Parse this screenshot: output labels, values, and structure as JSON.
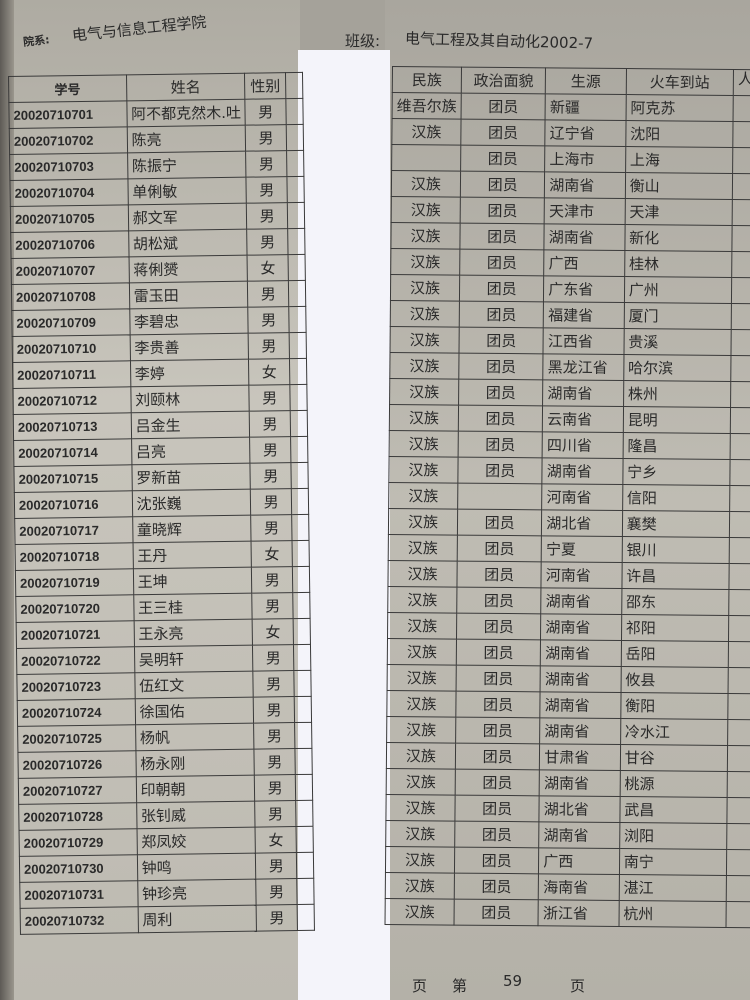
{
  "header": {
    "dept_label": "院系:",
    "dept": "电气与信息工程学院",
    "class_label": "班级:",
    "class": "电气工程及其自动化2002-7",
    "edge_char": "人"
  },
  "left_columns": [
    "学号",
    "姓名",
    "性别"
  ],
  "right_columns": [
    "民族",
    "政治面貌",
    "生源",
    "火车到站"
  ],
  "students": [
    {
      "id": "20020710701",
      "name": "阿不都克然木.吐",
      "gender": "男"
    },
    {
      "id": "20020710702",
      "name": "陈亮",
      "gender": "男"
    },
    {
      "id": "20020710703",
      "name": "陈振宁",
      "gender": "男"
    },
    {
      "id": "20020710704",
      "name": "单俐敏",
      "gender": "男"
    },
    {
      "id": "20020710705",
      "name": "郝文军",
      "gender": "男"
    },
    {
      "id": "20020710706",
      "name": "胡松斌",
      "gender": "男"
    },
    {
      "id": "20020710707",
      "name": "蒋俐赟",
      "gender": "女"
    },
    {
      "id": "20020710708",
      "name": "雷玉田",
      "gender": "男"
    },
    {
      "id": "20020710709",
      "name": "李碧忠",
      "gender": "男"
    },
    {
      "id": "20020710710",
      "name": "李贵善",
      "gender": "男"
    },
    {
      "id": "20020710711",
      "name": "李婷",
      "gender": "女"
    },
    {
      "id": "20020710712",
      "name": "刘颐林",
      "gender": "男"
    },
    {
      "id": "20020710713",
      "name": "吕金生",
      "gender": "男"
    },
    {
      "id": "20020710714",
      "name": "吕亮",
      "gender": "男"
    },
    {
      "id": "20020710715",
      "name": "罗新苗",
      "gender": "男"
    },
    {
      "id": "20020710716",
      "name": "沈张巍",
      "gender": "男"
    },
    {
      "id": "20020710717",
      "name": "童晓辉",
      "gender": "男"
    },
    {
      "id": "20020710718",
      "name": "王丹",
      "gender": "女"
    },
    {
      "id": "20020710719",
      "name": "王坤",
      "gender": "男"
    },
    {
      "id": "20020710720",
      "name": "王三桂",
      "gender": "男"
    },
    {
      "id": "20020710721",
      "name": "王永亮",
      "gender": "女"
    },
    {
      "id": "20020710722",
      "name": "吴明轩",
      "gender": "男"
    },
    {
      "id": "20020710723",
      "name": "伍红文",
      "gender": "男"
    },
    {
      "id": "20020710724",
      "name": "徐国佑",
      "gender": "男"
    },
    {
      "id": "20020710725",
      "name": "杨帆",
      "gender": "男"
    },
    {
      "id": "20020710726",
      "name": "杨永刚",
      "gender": "男"
    },
    {
      "id": "20020710727",
      "name": "印朝朝",
      "gender": "男"
    },
    {
      "id": "20020710728",
      "name": "张钊威",
      "gender": "男"
    },
    {
      "id": "20020710729",
      "name": "郑凤姣",
      "gender": "女"
    },
    {
      "id": "20020710730",
      "name": "钟鸣",
      "gender": "男"
    },
    {
      "id": "20020710731",
      "name": "钟珍亮",
      "gender": "男"
    },
    {
      "id": "20020710732",
      "name": "周利",
      "gender": "男"
    }
  ],
  "details": [
    {
      "nation": "维吾尔族",
      "politics": "团员",
      "origin": "新疆",
      "station": "阿克苏"
    },
    {
      "nation": "汉族",
      "politics": "团员",
      "origin": "辽宁省",
      "station": "沈阳"
    },
    {
      "nation": "",
      "politics": "团员",
      "origin": "上海市",
      "station": "上海"
    },
    {
      "nation": "汉族",
      "politics": "团员",
      "origin": "湖南省",
      "station": "衡山"
    },
    {
      "nation": "汉族",
      "politics": "团员",
      "origin": "天津市",
      "station": "天津"
    },
    {
      "nation": "汉族",
      "politics": "团员",
      "origin": "湖南省",
      "station": "新化"
    },
    {
      "nation": "汉族",
      "politics": "团员",
      "origin": "广西",
      "station": "桂林"
    },
    {
      "nation": "汉族",
      "politics": "团员",
      "origin": "广东省",
      "station": "广州"
    },
    {
      "nation": "汉族",
      "politics": "团员",
      "origin": "福建省",
      "station": "厦门"
    },
    {
      "nation": "汉族",
      "politics": "团员",
      "origin": "江西省",
      "station": "贵溪"
    },
    {
      "nation": "汉族",
      "politics": "团员",
      "origin": "黑龙江省",
      "station": "哈尔滨"
    },
    {
      "nation": "汉族",
      "politics": "团员",
      "origin": "湖南省",
      "station": "株州"
    },
    {
      "nation": "汉族",
      "politics": "团员",
      "origin": "云南省",
      "station": "昆明"
    },
    {
      "nation": "汉族",
      "politics": "团员",
      "origin": "四川省",
      "station": "隆昌"
    },
    {
      "nation": "汉族",
      "politics": "团员",
      "origin": "湖南省",
      "station": "宁乡"
    },
    {
      "nation": "汉族",
      "politics": "",
      "origin": "河南省",
      "station": "信阳"
    },
    {
      "nation": "汉族",
      "politics": "团员",
      "origin": "湖北省",
      "station": "襄樊"
    },
    {
      "nation": "汉族",
      "politics": "团员",
      "origin": "宁夏",
      "station": "银川"
    },
    {
      "nation": "汉族",
      "politics": "团员",
      "origin": "河南省",
      "station": "许昌"
    },
    {
      "nation": "汉族",
      "politics": "团员",
      "origin": "湖南省",
      "station": "邵东"
    },
    {
      "nation": "汉族",
      "politics": "团员",
      "origin": "湖南省",
      "station": "祁阳"
    },
    {
      "nation": "汉族",
      "politics": "团员",
      "origin": "湖南省",
      "station": "岳阳"
    },
    {
      "nation": "汉族",
      "politics": "团员",
      "origin": "湖南省",
      "station": "攸县"
    },
    {
      "nation": "汉族",
      "politics": "团员",
      "origin": "湖南省",
      "station": "衡阳"
    },
    {
      "nation": "汉族",
      "politics": "团员",
      "origin": "湖南省",
      "station": "冷水江"
    },
    {
      "nation": "汉族",
      "politics": "团员",
      "origin": "甘肃省",
      "station": "甘谷"
    },
    {
      "nation": "汉族",
      "politics": "团员",
      "origin": "湖南省",
      "station": "桃源"
    },
    {
      "nation": "汉族",
      "politics": "团员",
      "origin": "湖北省",
      "station": "武昌"
    },
    {
      "nation": "汉族",
      "politics": "团员",
      "origin": "湖南省",
      "station": "浏阳"
    },
    {
      "nation": "汉族",
      "politics": "团员",
      "origin": "广西",
      "station": "南宁"
    },
    {
      "nation": "汉族",
      "politics": "团员",
      "origin": "海南省",
      "station": "湛江"
    },
    {
      "nation": "汉族",
      "politics": "团员",
      "origin": "浙江省",
      "station": "杭州"
    }
  ],
  "footer": {
    "page_prefix": "页",
    "page_label": "第",
    "page_number": "59",
    "page_suffix": "页"
  }
}
